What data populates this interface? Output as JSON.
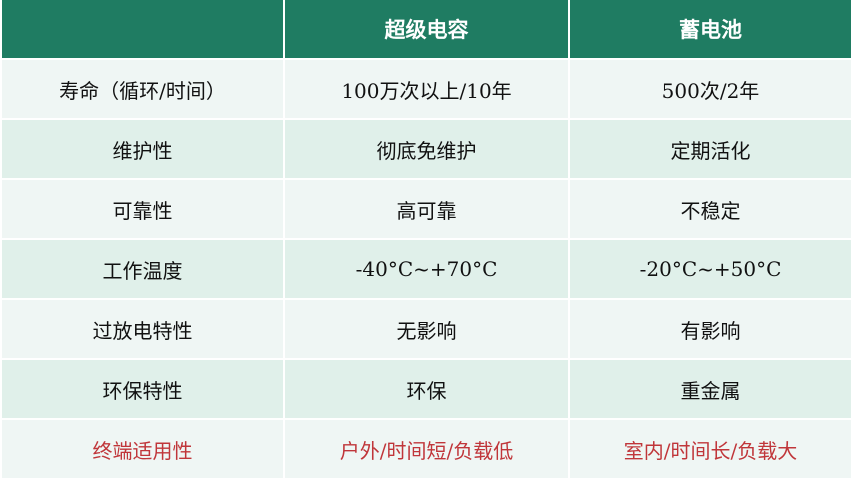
{
  "header": [
    "",
    "超级电容",
    "蓄电池"
  ],
  "rows": [
    {
      "label": "寿命（循环/时间）",
      "supercap": "100万次以上/10年",
      "battery": "500次/2年"
    },
    {
      "label": "维护性",
      "supercap": "彻底免维护",
      "battery": "定期活化"
    },
    {
      "label": "可靠性",
      "supercap": "高可靠",
      "battery": "不稳定"
    },
    {
      "label": "工作温度",
      "supercap": "-40°C~+70°C",
      "battery": "-20°C~+50°C"
    },
    {
      "label": "过放电特性",
      "supercap": "无影响",
      "battery": "有影响"
    },
    {
      "label": "环保特性",
      "supercap": "环保",
      "battery": "重金属"
    },
    {
      "label": "终端适用性",
      "supercap": "户外/时间短/负载低",
      "battery": "室内/时间长/负载大"
    }
  ],
  "colors": {
    "header_bg": "#1f7c62",
    "row_light": "#eff6f4",
    "row_alt": "#e0f0ea",
    "highlight_text": "#c0363a"
  }
}
